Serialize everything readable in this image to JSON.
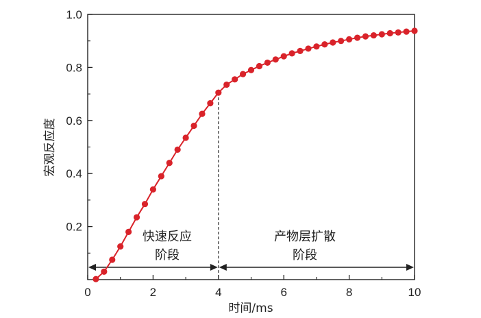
{
  "chart_data": {
    "type": "line",
    "xlabel": "时间/ms",
    "ylabel": "宏观反应度",
    "xlim": [
      0,
      10
    ],
    "ylim": [
      0,
      1.0
    ],
    "x_ticks": [
      "0",
      "2",
      "4",
      "6",
      "8",
      "10"
    ],
    "y_ticks": [
      "0.2",
      "0.4",
      "0.6",
      "0.8",
      "1.0"
    ],
    "grid": false,
    "legend": "none",
    "series": [
      {
        "color": "#d9232a",
        "marker": "circle",
        "x": [
          0.25,
          0.5,
          0.75,
          1.0,
          1.25,
          1.5,
          1.75,
          2.0,
          2.25,
          2.5,
          2.75,
          3.0,
          3.25,
          3.5,
          3.75,
          4.0,
          4.25,
          4.5,
          4.75,
          5.0,
          5.25,
          5.5,
          5.75,
          6.0,
          6.25,
          6.5,
          6.75,
          7.0,
          7.25,
          7.5,
          7.75,
          8.0,
          8.25,
          8.5,
          8.75,
          9.0,
          9.25,
          9.5,
          9.75,
          10.0
        ],
        "y": [
          0.002,
          0.03,
          0.075,
          0.125,
          0.18,
          0.235,
          0.285,
          0.34,
          0.39,
          0.44,
          0.49,
          0.535,
          0.58,
          0.625,
          0.665,
          0.705,
          0.735,
          0.755,
          0.775,
          0.79,
          0.805,
          0.818,
          0.83,
          0.842,
          0.853,
          0.862,
          0.871,
          0.879,
          0.887,
          0.894,
          0.9,
          0.906,
          0.912,
          0.917,
          0.921,
          0.925,
          0.929,
          0.932,
          0.935,
          0.938
        ]
      }
    ],
    "divider_x": 4,
    "annotations": {
      "phase1_line1": "快速反应",
      "phase1_line2": "阶段",
      "phase2_line1": "产物层扩散",
      "phase2_line2": "阶段"
    },
    "phase_ranges": [
      [
        0,
        4
      ],
      [
        4,
        10
      ]
    ]
  }
}
